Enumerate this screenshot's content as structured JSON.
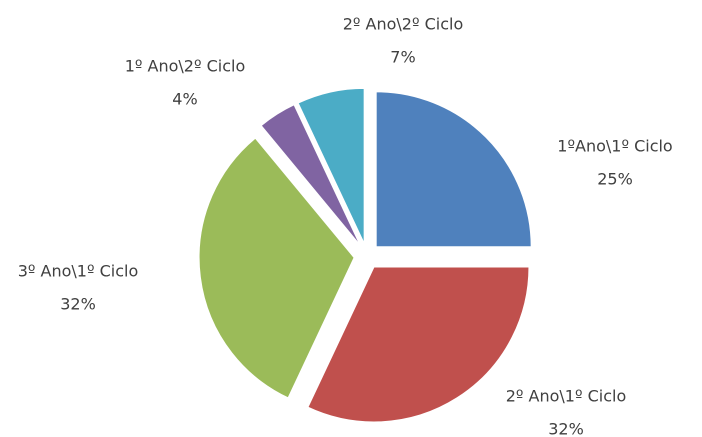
{
  "chart_data": {
    "type": "pie",
    "categories": [
      "1ºAno\\1º Ciclo",
      "2º Ano\\1º Ciclo",
      "3º Ano\\1º Ciclo",
      "1º Ano\\2º Ciclo",
      "2º Ano\\2º Ciclo"
    ],
    "values": [
      25,
      32,
      32,
      4,
      7
    ],
    "value_labels": [
      "25%",
      "32%",
      "32%",
      "4%",
      "7%"
    ],
    "colors": [
      "#4f81bd",
      "#c0504d",
      "#9bbb59",
      "#8064a2",
      "#4bacc6"
    ]
  }
}
